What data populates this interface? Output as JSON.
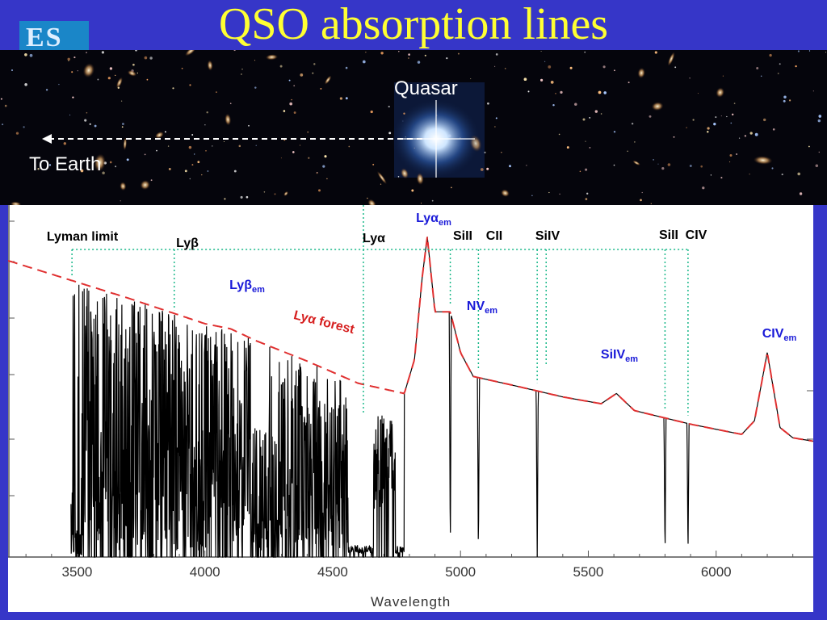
{
  "header": {
    "title": "QSO absorption lines",
    "logo_text": "ES"
  },
  "image_labels": {
    "quasar": "Quasar",
    "to_earth": "To Earth"
  },
  "chart_data": {
    "type": "line",
    "xlabel": "Wavelength",
    "xlim": [
      3230,
      6380
    ],
    "ylim": [
      0,
      1
    ],
    "x_ticks": [
      3500,
      4000,
      4500,
      5000,
      5500,
      6000
    ],
    "spectrum_continuum": [
      [
        3230,
        0.87
      ],
      [
        3700,
        0.76
      ],
      [
        4000,
        0.685
      ],
      [
        4100,
        0.67
      ],
      [
        4200,
        0.635
      ],
      [
        4400,
        0.575
      ],
      [
        4600,
        0.51
      ],
      [
        4780,
        0.48
      ],
      [
        4820,
        0.58
      ],
      [
        4850,
        0.82
      ],
      [
        4870,
        0.94
      ],
      [
        4900,
        0.72
      ],
      [
        4960,
        0.72
      ],
      [
        5000,
        0.6
      ],
      [
        5050,
        0.53
      ],
      [
        5200,
        0.505
      ],
      [
        5400,
        0.47
      ],
      [
        5550,
        0.45
      ],
      [
        5610,
        0.48
      ],
      [
        5680,
        0.43
      ],
      [
        5900,
        0.39
      ],
      [
        6100,
        0.36
      ],
      [
        6150,
        0.4
      ],
      [
        6200,
        0.6
      ],
      [
        6250,
        0.38
      ],
      [
        6300,
        0.35
      ],
      [
        6380,
        0.34
      ]
    ],
    "absorption_lines": [
      {
        "label": "Lyman limit",
        "x": 3480
      },
      {
        "label": "Lyβ",
        "x": 3880
      },
      {
        "label": "Lyα",
        "x": 4620
      },
      {
        "label": "SiII",
        "x": 4960
      },
      {
        "label": "CII",
        "x": 5070
      },
      {
        "label": "SiIV",
        "x": 5300
      },
      {
        "label": "SiII",
        "x": 5800
      },
      {
        "label": "CIV",
        "x": 5890
      }
    ],
    "emission_lines": [
      {
        "label": "Lyβ",
        "sub": "em",
        "x": 4100
      },
      {
        "label": "Lyα",
        "sub": "em",
        "x": 4870
      },
      {
        "label": "NV",
        "sub": "em",
        "x": 4990
      },
      {
        "label": "SiIV",
        "sub": "em",
        "x": 5600
      },
      {
        "label": "CIV",
        "sub": "em",
        "x": 6200
      }
    ],
    "annotations": [
      {
        "label": "Lyα",
        "suffix": "forest"
      }
    ],
    "colors": {
      "spectrum": "#000000",
      "continuum": "#e03030",
      "line_markers": "#1ab88a",
      "emission_labels": "#1a1ad8",
      "forest_label": "#d62020"
    }
  }
}
